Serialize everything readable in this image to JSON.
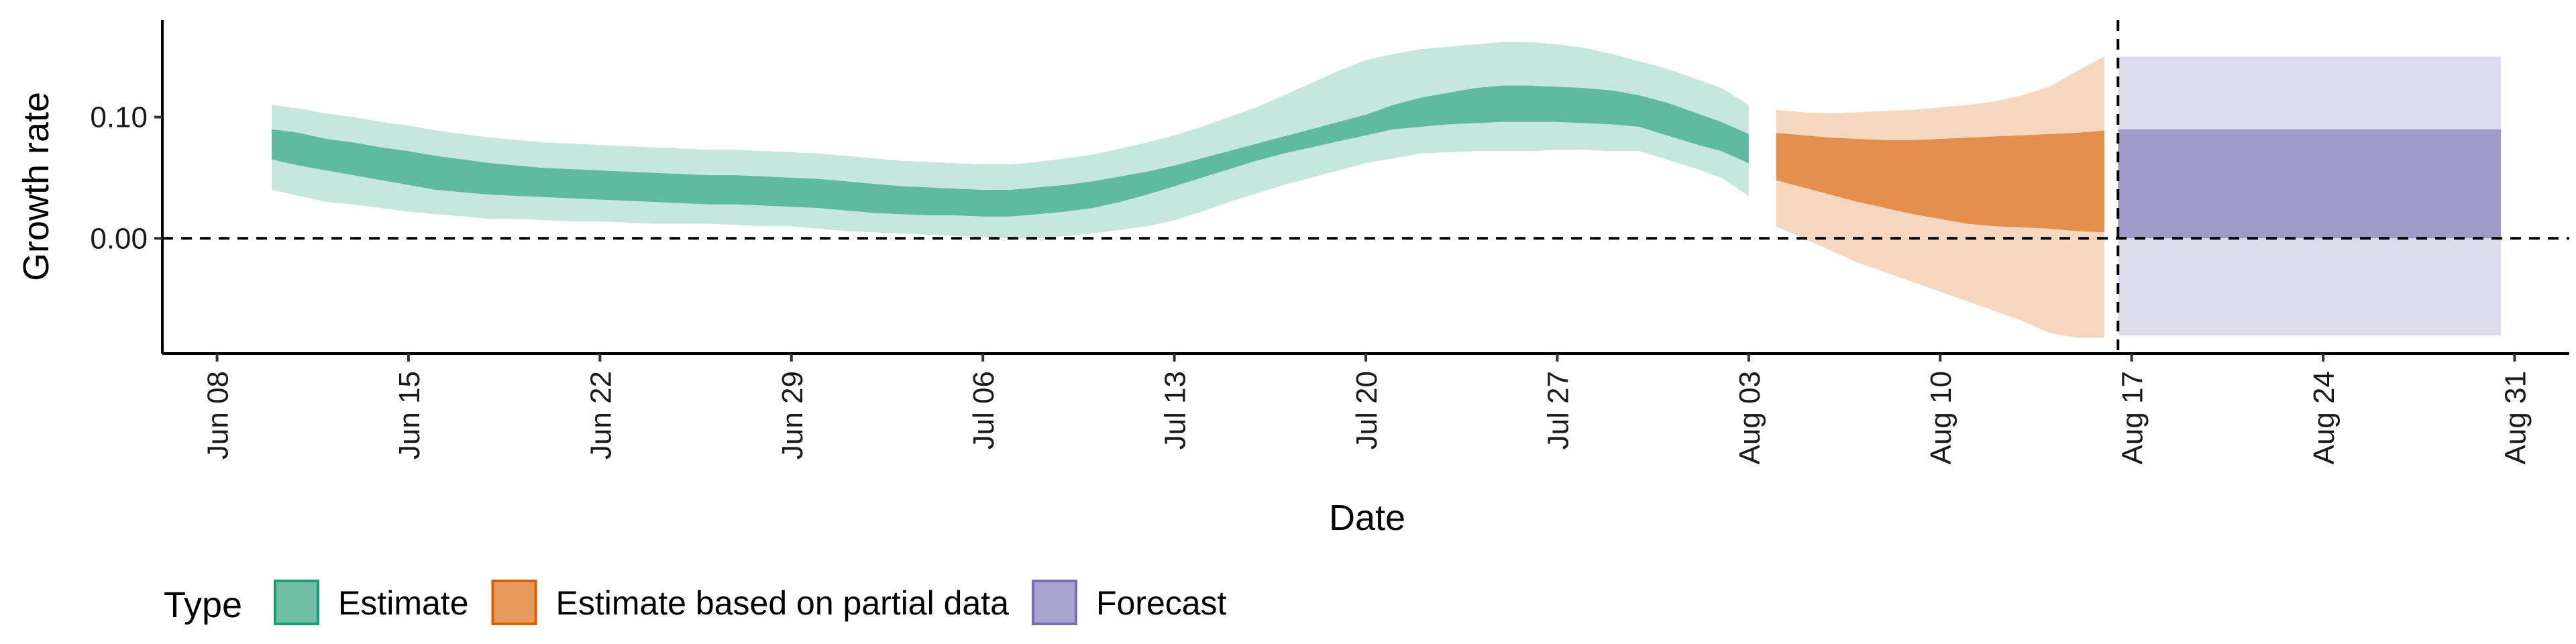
{
  "chart_data": {
    "type": "area",
    "xlabel": "Date",
    "ylabel": "Growth rate",
    "x_ticks": [
      "Jun 08",
      "Jun 15",
      "Jun 22",
      "Jun 29",
      "Jul 06",
      "Jul 13",
      "Jul 20",
      "Jul 27",
      "Aug 03",
      "Aug 10",
      "Aug 17",
      "Aug 24",
      "Aug 31"
    ],
    "y_ticks": [
      "0.00",
      "0.10"
    ],
    "xlim": [
      "2020-06-06",
      "2020-09-02"
    ],
    "ylim": [
      -0.095,
      0.18
    ],
    "grid": false,
    "reference_lines": [
      {
        "axis": "y",
        "value": 0,
        "style": "dashed"
      },
      {
        "axis": "x",
        "value": "2020-08-16",
        "style": "dashed"
      }
    ],
    "legend": {
      "title": "Type",
      "position": "bottom-left",
      "items": [
        {
          "label": "Estimate",
          "fill": "#71c0a6",
          "border": "#1b9e77"
        },
        {
          "label": "Estimate based on partial data",
          "fill": "#e89b5f",
          "border": "#d95f02"
        },
        {
          "label": "Forecast",
          "fill": "#a8a5d1",
          "border": "#7570b3"
        }
      ]
    },
    "series": [
      {
        "name": "Estimate",
        "color": "#1b9e77",
        "dates": [
          "2020-06-10",
          "2020-06-11",
          "2020-06-12",
          "2020-06-13",
          "2020-06-14",
          "2020-06-15",
          "2020-06-16",
          "2020-06-17",
          "2020-06-18",
          "2020-06-19",
          "2020-06-20",
          "2020-06-21",
          "2020-06-22",
          "2020-06-23",
          "2020-06-24",
          "2020-06-25",
          "2020-06-26",
          "2020-06-27",
          "2020-06-28",
          "2020-06-29",
          "2020-06-30",
          "2020-07-01",
          "2020-07-02",
          "2020-07-03",
          "2020-07-04",
          "2020-07-05",
          "2020-07-06",
          "2020-07-07",
          "2020-07-08",
          "2020-07-09",
          "2020-07-10",
          "2020-07-11",
          "2020-07-12",
          "2020-07-13",
          "2020-07-14",
          "2020-07-15",
          "2020-07-16",
          "2020-07-17",
          "2020-07-18",
          "2020-07-19",
          "2020-07-20",
          "2020-07-21",
          "2020-07-22",
          "2020-07-23",
          "2020-07-24",
          "2020-07-25",
          "2020-07-26",
          "2020-07-27",
          "2020-07-28",
          "2020-07-29",
          "2020-07-30",
          "2020-07-31",
          "2020-08-01",
          "2020-08-02",
          "2020-08-03"
        ],
        "outer_lower": [
          0.04,
          0.035,
          0.03,
          0.028,
          0.025,
          0.022,
          0.02,
          0.018,
          0.016,
          0.016,
          0.015,
          0.014,
          0.014,
          0.013,
          0.012,
          0.012,
          0.012,
          0.011,
          0.01,
          0.01,
          0.008,
          0.006,
          0.005,
          0.004,
          0.003,
          0.002,
          0.001,
          0.0,
          0.0,
          0.002,
          0.004,
          0.007,
          0.01,
          0.015,
          0.022,
          0.03,
          0.037,
          0.044,
          0.05,
          0.056,
          0.062,
          0.066,
          0.07,
          0.071,
          0.072,
          0.072,
          0.072,
          0.073,
          0.073,
          0.072,
          0.072,
          0.065,
          0.058,
          0.05,
          0.035
        ],
        "inner_lower": [
          0.065,
          0.06,
          0.056,
          0.052,
          0.048,
          0.044,
          0.04,
          0.038,
          0.036,
          0.035,
          0.034,
          0.033,
          0.032,
          0.031,
          0.03,
          0.029,
          0.028,
          0.028,
          0.027,
          0.026,
          0.025,
          0.023,
          0.021,
          0.02,
          0.019,
          0.019,
          0.018,
          0.018,
          0.02,
          0.022,
          0.025,
          0.03,
          0.036,
          0.043,
          0.05,
          0.057,
          0.064,
          0.07,
          0.075,
          0.08,
          0.085,
          0.09,
          0.092,
          0.094,
          0.095,
          0.096,
          0.096,
          0.096,
          0.095,
          0.094,
          0.092,
          0.085,
          0.078,
          0.072,
          0.062
        ],
        "inner_upper": [
          0.09,
          0.087,
          0.082,
          0.079,
          0.075,
          0.072,
          0.068,
          0.065,
          0.062,
          0.06,
          0.058,
          0.057,
          0.056,
          0.055,
          0.054,
          0.053,
          0.052,
          0.052,
          0.051,
          0.05,
          0.049,
          0.047,
          0.045,
          0.043,
          0.042,
          0.041,
          0.04,
          0.04,
          0.042,
          0.044,
          0.047,
          0.051,
          0.055,
          0.06,
          0.066,
          0.072,
          0.078,
          0.084,
          0.09,
          0.096,
          0.102,
          0.11,
          0.116,
          0.12,
          0.124,
          0.126,
          0.126,
          0.125,
          0.124,
          0.122,
          0.118,
          0.112,
          0.104,
          0.096,
          0.086
        ],
        "outer_upper": [
          0.11,
          0.107,
          0.103,
          0.1,
          0.096,
          0.093,
          0.089,
          0.086,
          0.083,
          0.081,
          0.079,
          0.078,
          0.077,
          0.076,
          0.075,
          0.074,
          0.073,
          0.073,
          0.072,
          0.071,
          0.07,
          0.068,
          0.066,
          0.064,
          0.063,
          0.062,
          0.061,
          0.061,
          0.063,
          0.066,
          0.069,
          0.074,
          0.079,
          0.085,
          0.092,
          0.1,
          0.108,
          0.118,
          0.128,
          0.138,
          0.147,
          0.152,
          0.156,
          0.158,
          0.16,
          0.162,
          0.162,
          0.16,
          0.157,
          0.152,
          0.146,
          0.14,
          0.132,
          0.124,
          0.11
        ]
      },
      {
        "name": "Estimate based on partial data",
        "color": "#d95f02",
        "dates": [
          "2020-08-04",
          "2020-08-05",
          "2020-08-06",
          "2020-08-07",
          "2020-08-08",
          "2020-08-09",
          "2020-08-10",
          "2020-08-11",
          "2020-08-12",
          "2020-08-13",
          "2020-08-14",
          "2020-08-15",
          "2020-08-16"
        ],
        "outer_lower": [
          0.01,
          0.0,
          -0.01,
          -0.02,
          -0.028,
          -0.036,
          -0.044,
          -0.052,
          -0.06,
          -0.068,
          -0.078,
          -0.082,
          -0.082
        ],
        "inner_lower": [
          0.048,
          0.042,
          0.036,
          0.03,
          0.025,
          0.02,
          0.016,
          0.012,
          0.01,
          0.009,
          0.008,
          0.006,
          0.005
        ],
        "inner_upper": [
          0.087,
          0.085,
          0.083,
          0.082,
          0.081,
          0.081,
          0.082,
          0.083,
          0.084,
          0.085,
          0.086,
          0.087,
          0.089
        ],
        "outer_upper": [
          0.106,
          0.104,
          0.103,
          0.104,
          0.105,
          0.106,
          0.108,
          0.11,
          0.113,
          0.118,
          0.125,
          0.138,
          0.15
        ]
      },
      {
        "name": "Forecast",
        "color": "#7570b3",
        "dates": [
          "2020-08-17",
          "2020-08-30"
        ],
        "outer_lower": [
          -0.08,
          -0.08
        ],
        "inner_lower": [
          0.0,
          0.0
        ],
        "inner_upper": [
          0.09,
          0.09
        ],
        "outer_upper": [
          0.15,
          0.15
        ]
      }
    ]
  }
}
